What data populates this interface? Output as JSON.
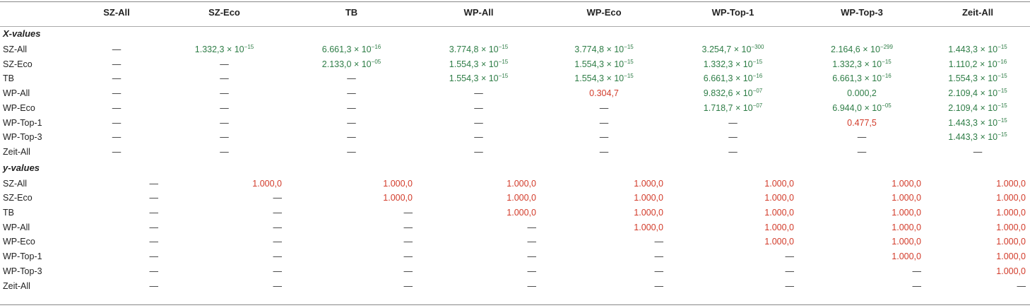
{
  "columns": [
    "SZ-All",
    "SZ-Eco",
    "TB",
    "WP-All",
    "WP-Eco",
    "WP-Top-1",
    "WP-Top-3",
    "Zeit-All"
  ],
  "sections": [
    {
      "title": "X-values",
      "rows": [
        {
          "label": "SZ-All",
          "cells": [
            {
              "t": "—",
              "c": "k"
            },
            {
              "t": "1.332,3 × 10",
              "e": "−15",
              "c": "g"
            },
            {
              "t": "6.661,3 × 10",
              "e": "−16",
              "c": "g"
            },
            {
              "t": "3.774,8 × 10",
              "e": "−15",
              "c": "g"
            },
            {
              "t": "3.774,8 × 10",
              "e": "−15",
              "c": "g"
            },
            {
              "t": "3.254,7 × 10",
              "e": "−300",
              "c": "g"
            },
            {
              "t": "2.164,6 × 10",
              "e": "−299",
              "c": "g"
            },
            {
              "t": "1.443,3 × 10",
              "e": "−15",
              "c": "g"
            }
          ]
        },
        {
          "label": "SZ-Eco",
          "cells": [
            {
              "t": "—",
              "c": "k"
            },
            {
              "t": "—",
              "c": "k"
            },
            {
              "t": "2.133,0 × 10",
              "e": "−05",
              "c": "g"
            },
            {
              "t": "1.554,3 × 10",
              "e": "−15",
              "c": "g"
            },
            {
              "t": "1.554,3 × 10",
              "e": "−15",
              "c": "g"
            },
            {
              "t": "1.332,3 × 10",
              "e": "−15",
              "c": "g"
            },
            {
              "t": "1.332,3 × 10",
              "e": "−15",
              "c": "g"
            },
            {
              "t": "1.110,2 × 10",
              "e": "−16",
              "c": "g"
            }
          ]
        },
        {
          "label": "TB",
          "cells": [
            {
              "t": "—",
              "c": "k"
            },
            {
              "t": "—",
              "c": "k"
            },
            {
              "t": "—",
              "c": "k"
            },
            {
              "t": "1.554,3 × 10",
              "e": "−15",
              "c": "g"
            },
            {
              "t": "1.554,3 × 10",
              "e": "−15",
              "c": "g"
            },
            {
              "t": "6.661,3 × 10",
              "e": "−16",
              "c": "g"
            },
            {
              "t": "6.661,3 × 10",
              "e": "−16",
              "c": "g"
            },
            {
              "t": "1.554,3 × 10",
              "e": "−15",
              "c": "g"
            }
          ]
        },
        {
          "label": "WP-All",
          "cells": [
            {
              "t": "—",
              "c": "k"
            },
            {
              "t": "—",
              "c": "k"
            },
            {
              "t": "—",
              "c": "k"
            },
            {
              "t": "—",
              "c": "k"
            },
            {
              "t": "0.304,7",
              "c": "rd"
            },
            {
              "t": "9.832,6 × 10",
              "e": "−07",
              "c": "g"
            },
            {
              "t": "0.000,2",
              "c": "g"
            },
            {
              "t": "2.109,4 × 10",
              "e": "−15",
              "c": "g"
            }
          ]
        },
        {
          "label": "WP-Eco",
          "cells": [
            {
              "t": "—",
              "c": "k"
            },
            {
              "t": "—",
              "c": "k"
            },
            {
              "t": "—",
              "c": "k"
            },
            {
              "t": "—",
              "c": "k"
            },
            {
              "t": "—",
              "c": "k"
            },
            {
              "t": "1.718,7 × 10",
              "e": "−07",
              "c": "g"
            },
            {
              "t": "6.944,0 × 10",
              "e": "−05",
              "c": "g"
            },
            {
              "t": "2.109,4 × 10",
              "e": "−15",
              "c": "g"
            }
          ]
        },
        {
          "label": "WP-Top-1",
          "cells": [
            {
              "t": "—",
              "c": "k"
            },
            {
              "t": "—",
              "c": "k"
            },
            {
              "t": "—",
              "c": "k"
            },
            {
              "t": "—",
              "c": "k"
            },
            {
              "t": "—",
              "c": "k"
            },
            {
              "t": "—",
              "c": "k"
            },
            {
              "t": "0.477,5",
              "c": "rd"
            },
            {
              "t": "1.443,3 × 10",
              "e": "−15",
              "c": "g"
            }
          ]
        },
        {
          "label": "WP-Top-3",
          "cells": [
            {
              "t": "—",
              "c": "k"
            },
            {
              "t": "—",
              "c": "k"
            },
            {
              "t": "—",
              "c": "k"
            },
            {
              "t": "—",
              "c": "k"
            },
            {
              "t": "—",
              "c": "k"
            },
            {
              "t": "—",
              "c": "k"
            },
            {
              "t": "—",
              "c": "k"
            },
            {
              "t": "1.443,3 × 10",
              "e": "−15",
              "c": "g"
            }
          ]
        },
        {
          "label": "Zeit-All",
          "cells": [
            {
              "t": "—",
              "c": "k"
            },
            {
              "t": "—",
              "c": "k"
            },
            {
              "t": "—",
              "c": "k"
            },
            {
              "t": "—",
              "c": "k"
            },
            {
              "t": "—",
              "c": "k"
            },
            {
              "t": "—",
              "c": "k"
            },
            {
              "t": "—",
              "c": "k"
            },
            {
              "t": "—",
              "c": "k"
            }
          ]
        }
      ]
    },
    {
      "title": "y-values",
      "rows": [
        {
          "label": "SZ-All",
          "cells": [
            {
              "t": "—",
              "c": "k"
            },
            {
              "t": "1.000,0",
              "c": "rd"
            },
            {
              "t": "1.000,0",
              "c": "rd"
            },
            {
              "t": "1.000,0",
              "c": "rd"
            },
            {
              "t": "1.000,0",
              "c": "rd"
            },
            {
              "t": "1.000,0",
              "c": "rd"
            },
            {
              "t": "1.000,0",
              "c": "rd"
            },
            {
              "t": "1.000,0",
              "c": "rd"
            }
          ]
        },
        {
          "label": "SZ-Eco",
          "cells": [
            {
              "t": "—",
              "c": "k"
            },
            {
              "t": "—",
              "c": "k"
            },
            {
              "t": "1.000,0",
              "c": "rd"
            },
            {
              "t": "1.000,0",
              "c": "rd"
            },
            {
              "t": "1.000,0",
              "c": "rd"
            },
            {
              "t": "1.000,0",
              "c": "rd"
            },
            {
              "t": "1.000,0",
              "c": "rd"
            },
            {
              "t": "1.000,0",
              "c": "rd"
            }
          ]
        },
        {
          "label": "TB",
          "cells": [
            {
              "t": "—",
              "c": "k"
            },
            {
              "t": "—",
              "c": "k"
            },
            {
              "t": "—",
              "c": "k"
            },
            {
              "t": "1.000,0",
              "c": "rd"
            },
            {
              "t": "1.000,0",
              "c": "rd"
            },
            {
              "t": "1.000,0",
              "c": "rd"
            },
            {
              "t": "1.000,0",
              "c": "rd"
            },
            {
              "t": "1.000,0",
              "c": "rd"
            }
          ]
        },
        {
          "label": "WP-All",
          "cells": [
            {
              "t": "—",
              "c": "k"
            },
            {
              "t": "—",
              "c": "k"
            },
            {
              "t": "—",
              "c": "k"
            },
            {
              "t": "—",
              "c": "k"
            },
            {
              "t": "1.000,0",
              "c": "rd"
            },
            {
              "t": "1.000,0",
              "c": "rd"
            },
            {
              "t": "1.000,0",
              "c": "rd"
            },
            {
              "t": "1.000,0",
              "c": "rd"
            }
          ]
        },
        {
          "label": "WP-Eco",
          "cells": [
            {
              "t": "—",
              "c": "k"
            },
            {
              "t": "—",
              "c": "k"
            },
            {
              "t": "—",
              "c": "k"
            },
            {
              "t": "—",
              "c": "k"
            },
            {
              "t": "—",
              "c": "k"
            },
            {
              "t": "1.000,0",
              "c": "rd"
            },
            {
              "t": "1.000,0",
              "c": "rd"
            },
            {
              "t": "1.000,0",
              "c": "rd"
            }
          ]
        },
        {
          "label": "WP-Top-1",
          "cells": [
            {
              "t": "—",
              "c": "k"
            },
            {
              "t": "—",
              "c": "k"
            },
            {
              "t": "—",
              "c": "k"
            },
            {
              "t": "—",
              "c": "k"
            },
            {
              "t": "—",
              "c": "k"
            },
            {
              "t": "—",
              "c": "k"
            },
            {
              "t": "1.000,0",
              "c": "rd"
            },
            {
              "t": "1.000,0",
              "c": "rd"
            }
          ]
        },
        {
          "label": "WP-Top-3",
          "cells": [
            {
              "t": "—",
              "c": "k"
            },
            {
              "t": "—",
              "c": "k"
            },
            {
              "t": "—",
              "c": "k"
            },
            {
              "t": "—",
              "c": "k"
            },
            {
              "t": "—",
              "c": "k"
            },
            {
              "t": "—",
              "c": "k"
            },
            {
              "t": "—",
              "c": "k"
            },
            {
              "t": "1.000,0",
              "c": "rd"
            }
          ]
        },
        {
          "label": "Zeit-All",
          "cells": [
            {
              "t": "—",
              "c": "k"
            },
            {
              "t": "—",
              "c": "k"
            },
            {
              "t": "—",
              "c": "k"
            },
            {
              "t": "—",
              "c": "k"
            },
            {
              "t": "—",
              "c": "k"
            },
            {
              "t": "—",
              "c": "k"
            },
            {
              "t": "—",
              "c": "k"
            },
            {
              "t": "—",
              "c": "k"
            }
          ]
        }
      ]
    }
  ],
  "colors": {
    "significant": "#2e7d46",
    "not_significant": "#d23b2a"
  }
}
